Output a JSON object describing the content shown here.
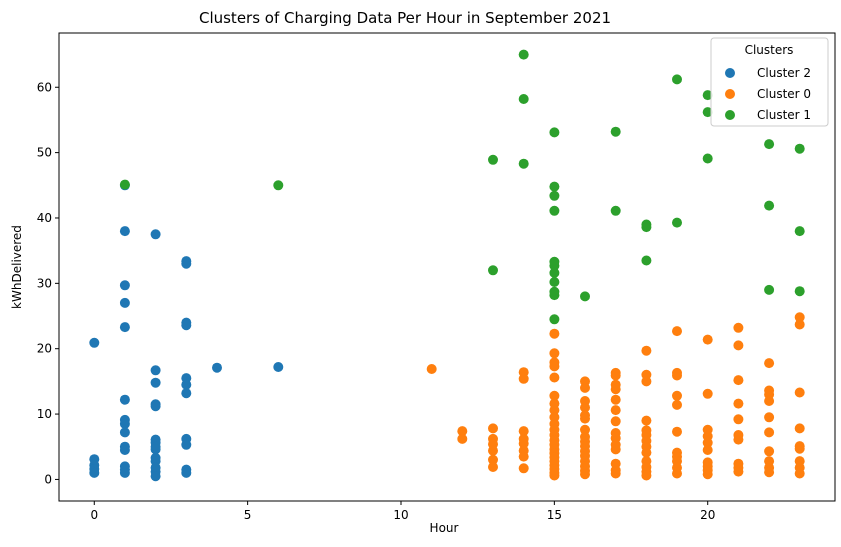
{
  "chart_data": {
    "type": "scatter",
    "title": "Clusters of Charging Data Per Hour in September 2021",
    "xlabel": "Hour",
    "ylabel": "kWhDelivered",
    "xlim": [
      -1.15,
      24.15
    ],
    "ylim": [
      -3.3,
      68.3
    ],
    "xticks": [
      0,
      5,
      10,
      15,
      20
    ],
    "yticks": [
      0,
      10,
      20,
      30,
      40,
      50,
      60
    ],
    "grid": false,
    "legend": {
      "title": "Clusters",
      "position": "top-right"
    },
    "series": [
      {
        "name": "Cluster 2",
        "color": "#1f77b4",
        "points": [
          [
            0,
            20.9
          ],
          [
            0,
            3.1
          ],
          [
            0,
            2.2
          ],
          [
            0,
            1.6
          ],
          [
            0,
            1.0
          ],
          [
            1,
            45.0
          ],
          [
            1,
            38.0
          ],
          [
            1,
            29.7
          ],
          [
            1,
            27.0
          ],
          [
            1,
            23.3
          ],
          [
            1,
            12.2
          ],
          [
            1,
            9.1
          ],
          [
            1,
            8.5
          ],
          [
            1,
            7.2
          ],
          [
            1,
            5.0
          ],
          [
            1,
            4.5
          ],
          [
            1,
            2.0
          ],
          [
            1,
            1.5
          ],
          [
            1,
            1.0
          ],
          [
            2,
            37.5
          ],
          [
            2,
            16.7
          ],
          [
            2,
            14.8
          ],
          [
            2,
            11.5
          ],
          [
            2,
            11.2
          ],
          [
            2,
            6.1
          ],
          [
            2,
            5.6
          ],
          [
            2,
            5.0
          ],
          [
            2,
            4.6
          ],
          [
            2,
            3.3
          ],
          [
            2,
            2.8
          ],
          [
            2,
            1.8
          ],
          [
            2,
            1.2
          ],
          [
            2,
            0.5
          ],
          [
            3,
            33.4
          ],
          [
            3,
            33.0
          ],
          [
            3,
            24.0
          ],
          [
            3,
            23.6
          ],
          [
            3,
            15.5
          ],
          [
            3,
            14.5
          ],
          [
            3,
            13.2
          ],
          [
            3,
            6.2
          ],
          [
            3,
            5.3
          ],
          [
            3,
            1.5
          ],
          [
            3,
            1.0
          ],
          [
            4,
            17.1
          ],
          [
            6,
            17.2
          ]
        ]
      },
      {
        "name": "Cluster 0",
        "color": "#ff7f0e",
        "points": [
          [
            11,
            16.9
          ],
          [
            12,
            7.4
          ],
          [
            12,
            6.2
          ],
          [
            13,
            7.8
          ],
          [
            13,
            6.2
          ],
          [
            13,
            5.4
          ],
          [
            13,
            4.4
          ],
          [
            13,
            3.0
          ],
          [
            13,
            1.9
          ],
          [
            14,
            16.4
          ],
          [
            14,
            15.4
          ],
          [
            14,
            7.4
          ],
          [
            14,
            6.2
          ],
          [
            14,
            5.5
          ],
          [
            14,
            4.4
          ],
          [
            14,
            3.5
          ],
          [
            14,
            1.7
          ],
          [
            15,
            22.3
          ],
          [
            15,
            19.3
          ],
          [
            15,
            17.9
          ],
          [
            15,
            17.3
          ],
          [
            15,
            15.6
          ],
          [
            15,
            12.8
          ],
          [
            15,
            11.6
          ],
          [
            15,
            10.6
          ],
          [
            15,
            9.5
          ],
          [
            15,
            8.5
          ],
          [
            15,
            7.6
          ],
          [
            15,
            6.8
          ],
          [
            15,
            6.0
          ],
          [
            15,
            5.3
          ],
          [
            15,
            4.6
          ],
          [
            15,
            4.0
          ],
          [
            15,
            3.4
          ],
          [
            15,
            2.8
          ],
          [
            15,
            2.2
          ],
          [
            15,
            1.6
          ],
          [
            15,
            1.0
          ],
          [
            15,
            0.6
          ],
          [
            16,
            15.0
          ],
          [
            16,
            14.0
          ],
          [
            16,
            12.0
          ],
          [
            16,
            11.0
          ],
          [
            16,
            9.8
          ],
          [
            16,
            9.3
          ],
          [
            16,
            7.6
          ],
          [
            16,
            6.5
          ],
          [
            16,
            5.8
          ],
          [
            16,
            5.1
          ],
          [
            16,
            4.3
          ],
          [
            16,
            3.6
          ],
          [
            16,
            2.8
          ],
          [
            16,
            2.0
          ],
          [
            16,
            1.3
          ],
          [
            16,
            0.8
          ],
          [
            17,
            16.3
          ],
          [
            17,
            15.9
          ],
          [
            17,
            14.5
          ],
          [
            17,
            13.8
          ],
          [
            17,
            12.2
          ],
          [
            17,
            10.6
          ],
          [
            17,
            8.9
          ],
          [
            17,
            7.1
          ],
          [
            17,
            6.3
          ],
          [
            17,
            5.3
          ],
          [
            17,
            4.6
          ],
          [
            17,
            2.4
          ],
          [
            17,
            1.4
          ],
          [
            17,
            0.9
          ],
          [
            18,
            19.7
          ],
          [
            18,
            16.0
          ],
          [
            18,
            15.0
          ],
          [
            18,
            9.0
          ],
          [
            18,
            7.5
          ],
          [
            18,
            6.8
          ],
          [
            18,
            5.9
          ],
          [
            18,
            5.0
          ],
          [
            18,
            4.1
          ],
          [
            18,
            2.8
          ],
          [
            18,
            1.9
          ],
          [
            18,
            1.2
          ],
          [
            18,
            0.6
          ],
          [
            19,
            22.7
          ],
          [
            19,
            16.3
          ],
          [
            19,
            15.9
          ],
          [
            19,
            12.8
          ],
          [
            19,
            11.4
          ],
          [
            19,
            7.3
          ],
          [
            19,
            4.1
          ],
          [
            19,
            3.5
          ],
          [
            19,
            2.8
          ],
          [
            19,
            1.8
          ],
          [
            19,
            0.9
          ],
          [
            20,
            21.4
          ],
          [
            20,
            13.1
          ],
          [
            20,
            7.6
          ],
          [
            20,
            6.6
          ],
          [
            20,
            5.6
          ],
          [
            20,
            4.5
          ],
          [
            20,
            2.6
          ],
          [
            20,
            2.0
          ],
          [
            20,
            1.4
          ],
          [
            20,
            0.8
          ],
          [
            21,
            23.2
          ],
          [
            21,
            20.5
          ],
          [
            21,
            15.2
          ],
          [
            21,
            11.6
          ],
          [
            21,
            9.2
          ],
          [
            21,
            6.8
          ],
          [
            21,
            6.1
          ],
          [
            21,
            2.4
          ],
          [
            21,
            1.8
          ],
          [
            21,
            1.2
          ],
          [
            22,
            17.8
          ],
          [
            22,
            13.6
          ],
          [
            22,
            13.0
          ],
          [
            22,
            12.0
          ],
          [
            22,
            9.5
          ],
          [
            22,
            7.2
          ],
          [
            22,
            4.3
          ],
          [
            22,
            2.8
          ],
          [
            22,
            1.8
          ],
          [
            22,
            1.1
          ],
          [
            23,
            24.8
          ],
          [
            23,
            23.7
          ],
          [
            23,
            13.3
          ],
          [
            23,
            7.8
          ],
          [
            23,
            5.1
          ],
          [
            23,
            4.7
          ],
          [
            23,
            2.8
          ],
          [
            23,
            1.8
          ],
          [
            23,
            0.9
          ]
        ]
      },
      {
        "name": "Cluster 1",
        "color": "#2ca02c",
        "points": [
          [
            1,
            45.1
          ],
          [
            6,
            45.0
          ],
          [
            13,
            48.9
          ],
          [
            13,
            32.0
          ],
          [
            14,
            65.0
          ],
          [
            14,
            58.2
          ],
          [
            14,
            48.3
          ],
          [
            15,
            53.1
          ],
          [
            15,
            44.8
          ],
          [
            15,
            43.4
          ],
          [
            15,
            41.1
          ],
          [
            15,
            33.3
          ],
          [
            15,
            32.7
          ],
          [
            15,
            31.6
          ],
          [
            15,
            30.2
          ],
          [
            15,
            28.7
          ],
          [
            15,
            28.2
          ],
          [
            15,
            24.5
          ],
          [
            16,
            28.0
          ],
          [
            17,
            53.2
          ],
          [
            17,
            41.1
          ],
          [
            18,
            39.0
          ],
          [
            18,
            38.6
          ],
          [
            18,
            33.5
          ],
          [
            19,
            61.2
          ],
          [
            19,
            39.3
          ],
          [
            20,
            58.8
          ],
          [
            20,
            56.2
          ],
          [
            20,
            49.1
          ],
          [
            22,
            51.3
          ],
          [
            22,
            41.9
          ],
          [
            22,
            29.0
          ],
          [
            23,
            50.6
          ],
          [
            23,
            38.0
          ],
          [
            23,
            28.8
          ]
        ]
      }
    ]
  }
}
